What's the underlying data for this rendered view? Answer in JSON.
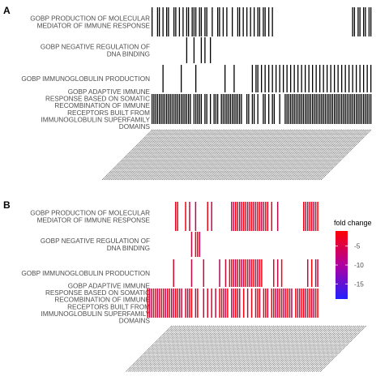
{
  "chart_data": [
    {
      "type": "heatmap",
      "panel_tag": "A",
      "rows": [
        {
          "label_lines": [
            "GOBP PRODUCTION OF MOLECULAR",
            "MEDIATOR OF IMMUNE RESPONSE"
          ],
          "positions": [
            0,
            3,
            4,
            6,
            8,
            9,
            12,
            13,
            15,
            17,
            19,
            20,
            22,
            23,
            24,
            26,
            27,
            29,
            30,
            33,
            36,
            37,
            39,
            41,
            44,
            47,
            48,
            50,
            52,
            54,
            56,
            58,
            59,
            61,
            62,
            64,
            66,
            110,
            111,
            113,
            114,
            116,
            117,
            119,
            120
          ]
        },
        {
          "label_lines": [
            "GOBP NEGATIVE REGULATION OF",
            "DNA BINDING"
          ],
          "positions": [
            19,
            23,
            27,
            29,
            32
          ]
        },
        {
          "label_lines": [
            "GOBP IMMUNOGLOBULIN PRODUCTION"
          ],
          "positions": [
            6,
            16,
            24,
            40,
            45,
            55,
            57,
            58,
            60,
            62,
            64,
            66,
            68,
            70,
            72,
            74,
            76,
            78,
            80,
            82,
            84,
            86,
            88,
            90,
            92,
            94,
            96,
            98,
            100,
            102,
            104,
            106,
            108,
            110,
            112,
            114,
            116,
            118,
            120
          ]
        },
        {
          "label_lines": [
            "GOBP ADAPTIVE IMMUNE",
            "RESPONSE BASED ON SOMATIC",
            "RECOMBINATION OF IMMUNE",
            "RECEPTORS BUILT FROM",
            "IMMUNOGLOBULIN SUPERFAMILY",
            "DOMAINS"
          ],
          "positions": [
            0,
            1,
            2,
            3,
            4,
            5,
            6,
            7,
            8,
            9,
            10,
            11,
            12,
            13,
            14,
            15,
            16,
            17,
            18,
            19,
            20,
            21,
            23,
            24,
            25,
            26,
            27,
            29,
            30,
            32,
            34,
            35,
            36,
            38,
            39,
            40,
            41,
            42,
            43,
            44,
            45,
            46,
            47,
            48,
            49,
            52,
            53,
            55,
            56,
            58,
            61,
            62,
            64,
            66,
            67,
            70,
            73,
            74,
            75,
            76,
            77,
            78,
            79,
            80,
            81,
            82,
            83,
            84,
            85,
            86,
            87,
            88,
            89,
            90,
            91,
            92,
            93,
            94,
            95,
            96,
            97,
            98,
            99,
            100,
            101,
            102,
            103,
            104,
            105,
            106,
            107,
            108,
            109,
            110,
            111,
            112,
            113,
            114,
            115,
            116,
            117,
            118,
            119,
            120
          ]
        }
      ],
      "fill_color": "#000000"
    },
    {
      "type": "heatmap",
      "panel_tag": "B",
      "rows": [
        {
          "label_lines": [
            "GOBP PRODUCTION OF MOLECULAR",
            "MEDIATOR OF IMMUNE RESPONSE"
          ],
          "positions": [
            2,
            3,
            7,
            9,
            12,
            18,
            20,
            30,
            31,
            32,
            33,
            34,
            35,
            36,
            37,
            38,
            39,
            40,
            41,
            42,
            43,
            44,
            45,
            46,
            47,
            48,
            50,
            53,
            66,
            67,
            68,
            69,
            70,
            71,
            72,
            73
          ]
        },
        {
          "label_lines": [
            "GOBP NEGATIVE REGULATION OF",
            "DNA BINDING"
          ],
          "positions": [
            10,
            12,
            13,
            14
          ]
        },
        {
          "label_lines": [
            "GOBP IMMUNOGLOBULIN PRODUCTION"
          ],
          "positions": [
            1,
            10,
            16,
            24,
            27,
            29,
            30,
            31,
            32,
            33,
            34,
            35,
            36,
            37,
            38,
            39,
            40,
            41,
            42,
            43,
            44,
            45,
            51,
            53,
            55,
            68,
            70,
            72,
            73
          ]
        },
        {
          "label_lines": [
            "GOBP ADAPTIVE IMMUNE",
            "RESPONSE BASED ON SOMATIC",
            "RECOMBINATION OF IMMUNE",
            "RECEPTORS BUILT FROM",
            "IMMUNOGLOBULIN SUPERFAMILY",
            "DOMAINS"
          ],
          "positions": [
            -12,
            -11,
            -10,
            -9,
            -8,
            -7,
            -6,
            -5,
            -4,
            -3,
            -2,
            -1,
            0,
            1,
            2,
            3,
            4,
            5,
            7,
            8,
            9,
            10,
            12,
            13,
            16,
            18,
            20,
            22,
            24,
            25,
            26,
            27,
            28,
            30,
            31,
            32,
            33,
            34,
            36,
            38,
            40,
            42,
            43,
            44,
            46,
            47,
            48,
            50,
            51,
            52,
            53,
            54,
            55,
            56,
            57,
            58,
            59,
            60,
            62,
            63,
            64,
            65,
            66,
            67,
            68,
            69,
            70,
            71,
            72,
            73
          ]
        }
      ],
      "legend": {
        "title": "fold change",
        "ticks": [
          -5,
          -10,
          -15
        ],
        "range": [
          -19,
          -1
        ],
        "colors": {
          "high": "#ff0000",
          "low": "#2020ff"
        }
      }
    }
  ],
  "colors": {
    "panel_a_tiles": "#000000",
    "panel_b_high": "#ff0000",
    "panel_b_low": "#2020ff",
    "label_text": "#4d4d4d"
  }
}
